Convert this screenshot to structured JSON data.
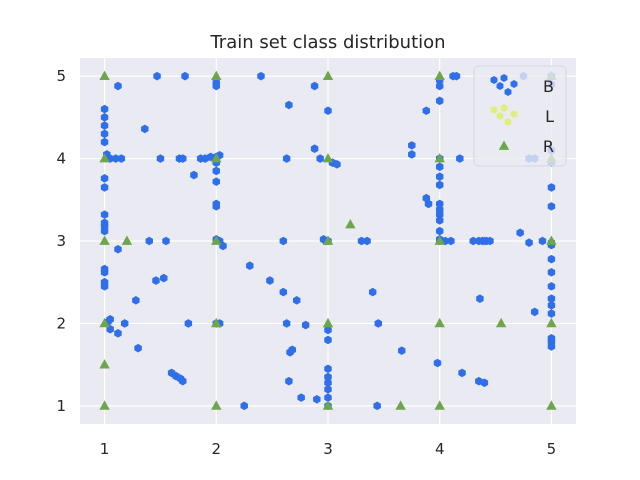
{
  "chart_data": {
    "type": "scatter",
    "title": "Train set class distribution",
    "xlabel": "",
    "ylabel": "",
    "xlim": [
      0.78,
      5.22
    ],
    "ylim": [
      0.78,
      5.22
    ],
    "xticks": [
      1,
      2,
      3,
      4,
      5
    ],
    "yticks": [
      1,
      2,
      3,
      4,
      5
    ],
    "grid": true,
    "legend": {
      "placement": "top-right"
    },
    "series": [
      {
        "name": "B",
        "marker": "hexagon",
        "color": "#2f6fe9",
        "points": [
          [
            1,
            4.6
          ],
          [
            1,
            4.5
          ],
          [
            1,
            4.4
          ],
          [
            1,
            4.3
          ],
          [
            1,
            4.2
          ],
          [
            1.02,
            4.05
          ],
          [
            1.05,
            4.0
          ],
          [
            1.1,
            4.0
          ],
          [
            1.15,
            4.0
          ],
          [
            1,
            3.76
          ],
          [
            1,
            3.65
          ],
          [
            1,
            3.32
          ],
          [
            1,
            3.22
          ],
          [
            1,
            3.18
          ],
          [
            1,
            3.12
          ],
          [
            1,
            2.66
          ],
          [
            1,
            2.62
          ],
          [
            1,
            2.5
          ],
          [
            1,
            2.45
          ],
          [
            1.03,
            2.02
          ],
          [
            1.05,
            2.05
          ],
          [
            1.05,
            1.93
          ],
          [
            1.12,
            1.88
          ],
          [
            1.18,
            2.0
          ],
          [
            1.12,
            2.9
          ],
          [
            1.12,
            4.88
          ],
          [
            1.28,
            2.28
          ],
          [
            1.3,
            1.7
          ],
          [
            1.36,
            4.36
          ],
          [
            1.4,
            3.0
          ],
          [
            1.46,
            2.52
          ],
          [
            1.47,
            5.0
          ],
          [
            1.5,
            4.0
          ],
          [
            1.53,
            2.55
          ],
          [
            1.55,
            3.0
          ],
          [
            1.6,
            1.4
          ],
          [
            1.64,
            1.36
          ],
          [
            1.68,
            1.33
          ],
          [
            1.7,
            1.3
          ],
          [
            1.67,
            4.0
          ],
          [
            1.7,
            4.0
          ],
          [
            1.72,
            5.0
          ],
          [
            1.75,
            2.0
          ],
          [
            1.8,
            3.8
          ],
          [
            1.86,
            4.0
          ],
          [
            1.9,
            4.0
          ],
          [
            1.95,
            4.02
          ],
          [
            2,
            4.02
          ],
          [
            2,
            4.0
          ],
          [
            2,
            3.95
          ],
          [
            2,
            3.85
          ],
          [
            2,
            3.72
          ],
          [
            2,
            3.45
          ],
          [
            2,
            3.42
          ],
          [
            2.03,
            4.04
          ],
          [
            2,
            4.92
          ],
          [
            2,
            4.88
          ],
          [
            2,
            3.02
          ],
          [
            2.03,
            3.0
          ],
          [
            2.06,
            2.94
          ],
          [
            2,
            2.0
          ],
          [
            2.03,
            2.0
          ],
          [
            2.25,
            1.0
          ],
          [
            2.3,
            2.7
          ],
          [
            2.4,
            5.0
          ],
          [
            2.48,
            2.52
          ],
          [
            2.6,
            2.38
          ],
          [
            2.6,
            3.0
          ],
          [
            2.63,
            4.0
          ],
          [
            2.63,
            2.0
          ],
          [
            2.65,
            1.3
          ],
          [
            2.66,
            1.65
          ],
          [
            2.65,
            4.65
          ],
          [
            2.68,
            1.68
          ],
          [
            2.72,
            2.28
          ],
          [
            2.76,
            1.1
          ],
          [
            2.8,
            1.98
          ],
          [
            2.88,
            4.12
          ],
          [
            2.88,
            4.88
          ],
          [
            2.9,
            1.08
          ],
          [
            2.93,
            4.0
          ],
          [
            2.96,
            3.02
          ],
          [
            2.98,
            3.0
          ],
          [
            3,
            1.45
          ],
          [
            3,
            1.35
          ],
          [
            3,
            1.28
          ],
          [
            3,
            1.2
          ],
          [
            3,
            1.1
          ],
          [
            3,
            1.0
          ],
          [
            3,
            1.8
          ],
          [
            3,
            1.92
          ],
          [
            3,
            3.0
          ],
          [
            3,
            4.58
          ],
          [
            3.04,
            3.95
          ],
          [
            3.08,
            3.93
          ],
          [
            3.3,
            3.0
          ],
          [
            3.35,
            3.0
          ],
          [
            3.4,
            2.38
          ],
          [
            3.44,
            1.0
          ],
          [
            3.45,
            2.0
          ],
          [
            3.66,
            1.67
          ],
          [
            3.75,
            4.16
          ],
          [
            3.75,
            4.05
          ],
          [
            3.88,
            4.58
          ],
          [
            3.88,
            3.52
          ],
          [
            3.9,
            3.45
          ],
          [
            3.98,
            1.52
          ],
          [
            4,
            4.95
          ],
          [
            4,
            4.88
          ],
          [
            4,
            4.7
          ],
          [
            4,
            4.0
          ],
          [
            4,
            3.9
          ],
          [
            4,
            3.78
          ],
          [
            4,
            3.68
          ],
          [
            4,
            3.45
          ],
          [
            4,
            3.38
          ],
          [
            4,
            3.32
          ],
          [
            4,
            3.25
          ],
          [
            4,
            3.12
          ],
          [
            4,
            3.02
          ],
          [
            4,
            3.0
          ],
          [
            4.05,
            3.0
          ],
          [
            4.1,
            3.0
          ],
          [
            4.12,
            5.0
          ],
          [
            4.15,
            5.0
          ],
          [
            4.18,
            4.0
          ],
          [
            4.2,
            1.4
          ],
          [
            4.3,
            3.0
          ],
          [
            4.35,
            3.0
          ],
          [
            4.38,
            3.0
          ],
          [
            4.4,
            3.0
          ],
          [
            4.42,
            3.0
          ],
          [
            4.45,
            3.0
          ],
          [
            4.35,
            1.3
          ],
          [
            4.4,
            1.28
          ],
          [
            4.36,
            2.3
          ],
          [
            4.72,
            3.1
          ],
          [
            4.8,
            2.98
          ],
          [
            4.85,
            2.14
          ],
          [
            4.75,
            5.0
          ],
          [
            4.8,
            4.0
          ],
          [
            4.85,
            4.0
          ],
          [
            4.92,
            3.0
          ],
          [
            5,
            5.0
          ],
          [
            5,
            4.9
          ],
          [
            5,
            4.1
          ],
          [
            5,
            3.95
          ],
          [
            5,
            3.65
          ],
          [
            5,
            3.42
          ],
          [
            5,
            2.98
          ],
          [
            5,
            2.95
          ],
          [
            5,
            2.78
          ],
          [
            5,
            2.62
          ],
          [
            5,
            2.45
          ],
          [
            5,
            2.3
          ],
          [
            5,
            2.22
          ],
          [
            5,
            2.12
          ],
          [
            5,
            1.82
          ],
          [
            5,
            1.78
          ],
          [
            5,
            1.72
          ]
        ]
      },
      {
        "name": "L",
        "marker": "hexagon",
        "color": "#e0ee80",
        "points": []
      },
      {
        "name": "R",
        "marker": "triangle",
        "color": "#6ea64a",
        "points": [
          [
            1,
            5
          ],
          [
            1,
            4
          ],
          [
            1,
            3
          ],
          [
            1,
            2
          ],
          [
            1,
            1.5
          ],
          [
            1,
            1
          ],
          [
            1.2,
            3
          ],
          [
            2,
            5
          ],
          [
            2,
            4
          ],
          [
            2,
            3
          ],
          [
            2,
            2
          ],
          [
            2,
            1
          ],
          [
            3,
            5
          ],
          [
            3,
            4
          ],
          [
            3,
            3
          ],
          [
            3,
            2
          ],
          [
            3,
            1
          ],
          [
            3.2,
            3.2
          ],
          [
            3.65,
            1
          ],
          [
            4,
            5
          ],
          [
            4,
            4
          ],
          [
            4,
            3
          ],
          [
            4,
            2
          ],
          [
            4,
            1
          ],
          [
            4.55,
            2
          ],
          [
            5,
            5
          ],
          [
            5,
            4
          ],
          [
            5,
            3
          ],
          [
            5,
            2
          ],
          [
            5,
            1
          ]
        ]
      }
    ]
  }
}
